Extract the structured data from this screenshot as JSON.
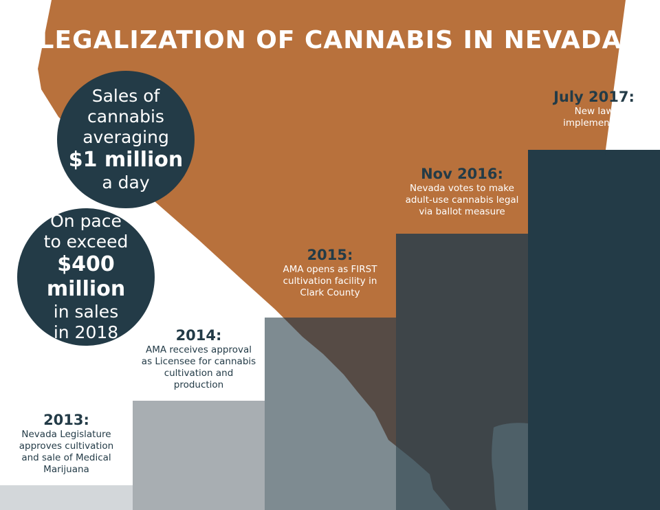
{
  "title": "LEGALIZATION OF CANNABIS IN NEVADA",
  "stats": [
    {
      "lines": [
        "Sales of",
        "cannabis",
        "averaging"
      ],
      "highlight": "$1 million",
      "tail": [
        "a day"
      ]
    },
    {
      "lines": [
        "On pace",
        "to exceed"
      ],
      "highlight": "$400 million",
      "tail": [
        "in sales",
        "in 2018"
      ]
    }
  ],
  "timeline": [
    {
      "year": "2013:",
      "desc": [
        "Nevada Legislature",
        "approves cultivation",
        "and sale of Medical",
        "Marijuana"
      ]
    },
    {
      "year": "2014:",
      "desc": [
        "AMA receives approval",
        "as Licensee for cannabis",
        "cultivation and",
        "production"
      ]
    },
    {
      "year": "2015:",
      "desc": [
        "AMA opens as FIRST",
        "cultivation facility in",
        "Clark County"
      ]
    },
    {
      "year": "Nov 2016:",
      "desc": [
        "Nevada votes to make",
        "adult-use cannabis legal",
        "via ballot measure"
      ]
    },
    {
      "year": "July 2017:",
      "desc": [
        "New law",
        "implemented"
      ]
    }
  ],
  "colors": {
    "nevada": "#b8713c",
    "dark": "#233b47",
    "bar1": "#d3d7da",
    "bar2": "#a8aeb2",
    "bar3": "#7e8b91",
    "bar4": "#3e4549",
    "bar5": "#233b47"
  }
}
